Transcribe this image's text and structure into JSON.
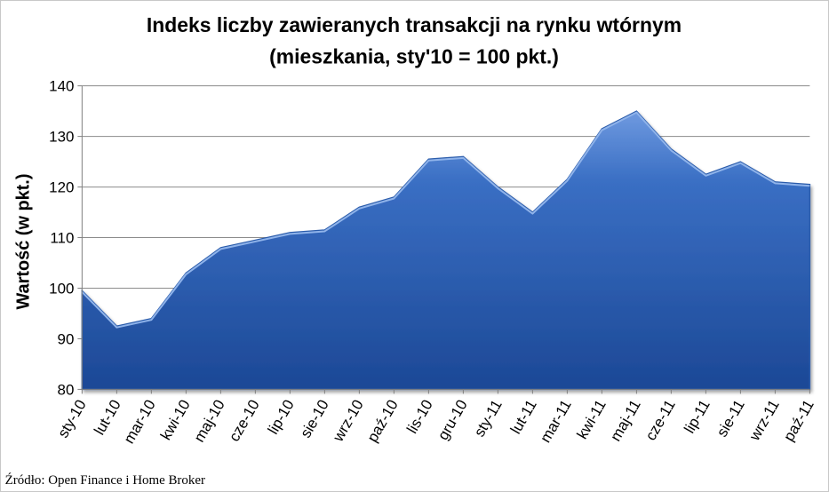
{
  "chart_data": {
    "type": "area",
    "title_line1": "Indeks liczby zawieranych transakcji na rynku wtórnym",
    "title_line2": "(mieszkania, sty'10 = 100 pkt.)",
    "ylabel": "Wartość (w pkt.)",
    "xlabel": "",
    "ylim": [
      80,
      140
    ],
    "yticks": [
      80,
      90,
      100,
      110,
      120,
      130,
      140
    ],
    "grid": true,
    "legend": "none",
    "fill_color": "#3a6fc4",
    "fill_color_light": "#6f9ae0",
    "fill_color_dark": "#1c4896",
    "categories": [
      "sty-10",
      "lut-10",
      "mar-10",
      "kwi-10",
      "maj-10",
      "cze-10",
      "lip-10",
      "sie-10",
      "wrz-10",
      "paź-10",
      "lis-10",
      "gru-10",
      "sty-11",
      "lut-11",
      "mar-11",
      "kwi-11",
      "maj-11",
      "cze-11",
      "lip-11",
      "sie-11",
      "wrz-11",
      "paź-11"
    ],
    "values": [
      99.5,
      92.5,
      94,
      103,
      108,
      109.5,
      111,
      111.5,
      116,
      118,
      125.5,
      126,
      120,
      115,
      121.5,
      131.5,
      135,
      127.5,
      122.5,
      125,
      121,
      120.5
    ],
    "source": "Źródło: Open Finance i Home Broker"
  }
}
